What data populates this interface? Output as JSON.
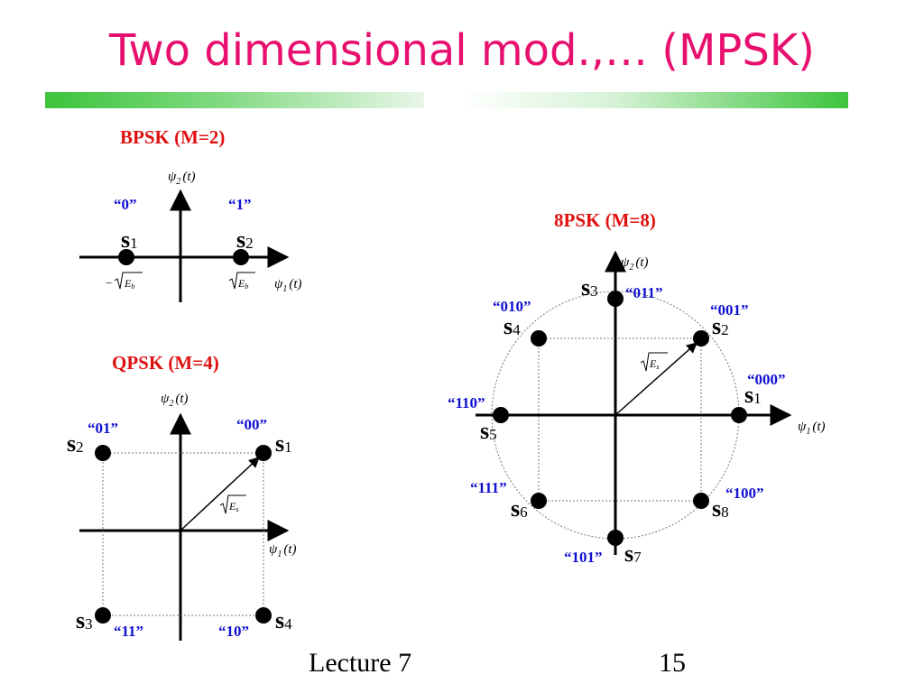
{
  "slide": {
    "title": "Two dimensional mod.,… (MPSK)",
    "footer_left": "Lecture 7",
    "footer_right": "15",
    "colors": {
      "title": "#e8106e",
      "heading": "#e01010",
      "bitlabel": "#1010d0",
      "accent_bar": "#3cc43c"
    }
  },
  "axis_labels": {
    "psi": "ψ",
    "t": "(t)",
    "sub1": "1",
    "sub2": "2"
  },
  "bpsk": {
    "heading": "BPSK (M=2)",
    "points": [
      {
        "sym": "s",
        "idx": "1",
        "bits": "“0”"
      },
      {
        "sym": "s",
        "idx": "2",
        "bits": "“1”"
      }
    ],
    "neg_label": "−",
    "energy_sub": "b",
    "energy_letter": "E"
  },
  "qpsk": {
    "heading": "QPSK (M=4)",
    "points": [
      {
        "sym": "s",
        "idx": "1",
        "bits": "“00”"
      },
      {
        "sym": "s",
        "idx": "2",
        "bits": "“01”"
      },
      {
        "sym": "s",
        "idx": "3",
        "bits": "“11”"
      },
      {
        "sym": "s",
        "idx": "4",
        "bits": "“10”"
      }
    ],
    "energy_letter": "E",
    "energy_sub": "s"
  },
  "psk8": {
    "heading": "8PSK (M=8)",
    "points": [
      {
        "sym": "s",
        "idx": "1",
        "bits": "“000”"
      },
      {
        "sym": "s",
        "idx": "2",
        "bits": "“001”"
      },
      {
        "sym": "s",
        "idx": "3",
        "bits": "“011”"
      },
      {
        "sym": "s",
        "idx": "4",
        "bits": "“010”"
      },
      {
        "sym": "s",
        "idx": "5",
        "bits": "“110”"
      },
      {
        "sym": "s",
        "idx": "6",
        "bits": "“111”"
      },
      {
        "sym": "s",
        "idx": "7",
        "bits": "“101”"
      },
      {
        "sym": "s",
        "idx": "8",
        "bits": "“100”"
      }
    ],
    "energy_letter": "E",
    "energy_sub": "s"
  }
}
